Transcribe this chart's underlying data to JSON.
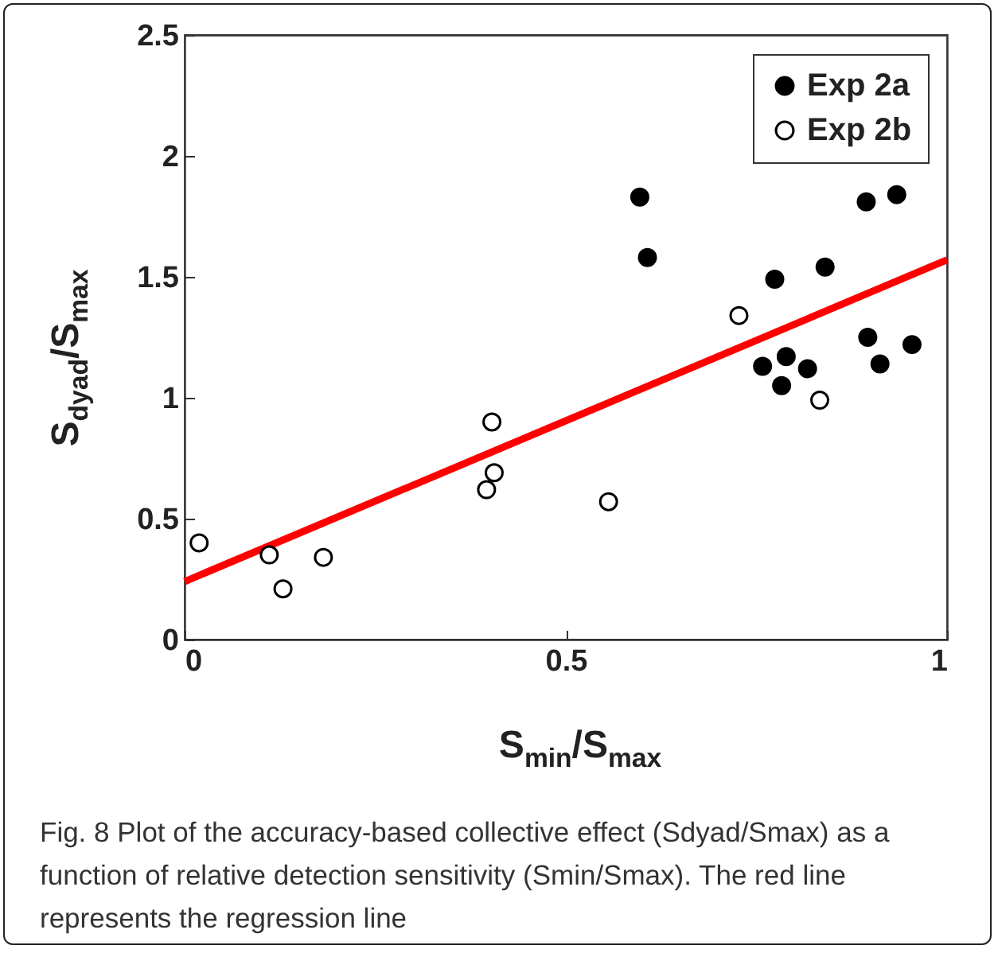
{
  "chart_data": {
    "type": "scatter",
    "xlabel": "S$_{min}$/S$_{max}$",
    "ylabel": "S$_{dyad}$/S$_{max}$",
    "xlim": [
      0,
      1
    ],
    "xticks": [
      0,
      0.5,
      1
    ],
    "ylim": [
      0,
      2.5
    ],
    "yticks": [
      0,
      0.5,
      1,
      1.5,
      2,
      2.5
    ],
    "legend": "top right",
    "series": [
      {
        "name": "Exp 2a",
        "color": "#000000",
        "marker": "circle",
        "x": [
          0.597,
          0.607,
          0.774,
          0.84,
          0.894,
          0.934,
          0.758,
          0.789,
          0.783,
          0.817,
          0.896,
          0.912,
          0.954
        ],
        "values": [
          1.83,
          1.58,
          1.49,
          1.54,
          1.81,
          1.84,
          1.13,
          1.17,
          1.05,
          1.12,
          1.25,
          1.14,
          1.22
        ]
      },
      {
        "name": "Exp 2b",
        "color": "#ffffff",
        "marker": "circle",
        "x": [
          0.019,
          0.111,
          0.129,
          0.182,
          0.403,
          0.406,
          0.396,
          0.556,
          0.727,
          0.833
        ],
        "values": [
          0.4,
          0.35,
          0.21,
          0.34,
          0.9,
          0.69,
          0.62,
          0.57,
          1.34,
          0.99
        ]
      },
      {
        "type": "line",
        "color": "#ff0000",
        "x": [
          0,
          1
        ],
        "values": [
          0.24,
          1.57
        ]
      }
    ],
    "annotations": [
      "Fig. 8 Plot of the accuracy-based collective effect (Sdyad/Smax) as a function of relative detection sensitivity (Smin/Smax). The red line represents the regression line"
    ]
  }
}
